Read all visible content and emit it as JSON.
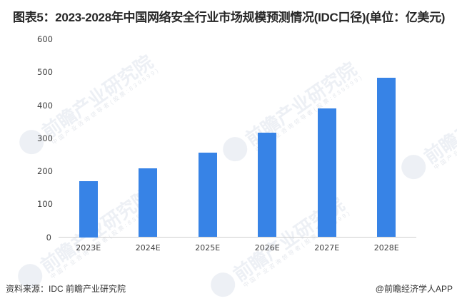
{
  "title": "图表5：2023-2028年中国网络安全行业市场规模预测情况(IDC口径)(单位：亿美元)",
  "watermark": {
    "text": "前瞻产业研究院",
    "subtext": "中国产业咨询领导者(股票:839599)"
  },
  "footer": {
    "source": "资料来源：IDC 前瞻产业研究院",
    "credit": "@前瞻经济学人APP"
  },
  "colors": {
    "bar": "#3783E6",
    "axis": "#cfcfcf",
    "text": "#404040"
  },
  "chart_data": {
    "type": "bar",
    "title": "图表5：2023-2028年中国网络安全行业市场规模预测情况(IDC口径)(单位：亿美元)",
    "xlabel": "",
    "ylabel": "亿美元",
    "categories": [
      "2023E",
      "2024E",
      "2025E",
      "2026E",
      "2027E",
      "2028E"
    ],
    "values": [
      170,
      209,
      257,
      317,
      391,
      484
    ],
    "ylim": [
      0,
      600
    ],
    "yticks": [
      0,
      100,
      200,
      300,
      400,
      500,
      600
    ],
    "grid": false,
    "legend": null
  }
}
